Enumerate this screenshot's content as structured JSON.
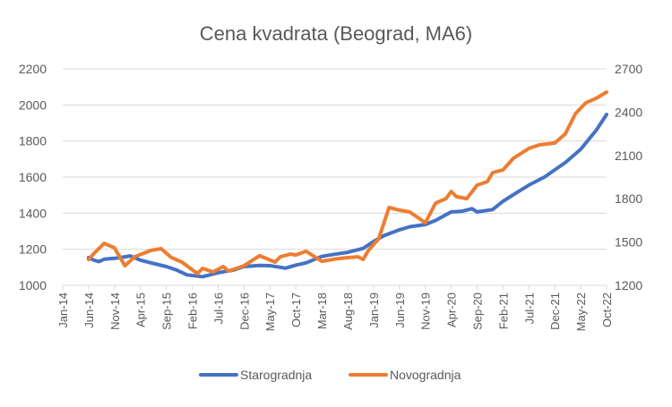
{
  "chart_data": {
    "type": "line",
    "title": "Cena kvadrata (Beograd, MA6)",
    "xlabel": "",
    "ylabel_left": "",
    "ylabel_right": "",
    "grid": true,
    "legend_position": "bottom",
    "x_ticks": [
      "Jan-14",
      "Jun-14",
      "Nov-14",
      "Apr-15",
      "Sep-15",
      "Feb-16",
      "Jul-16",
      "Dec-16",
      "May-17",
      "Oct-17",
      "Mar-18",
      "Aug-18",
      "Jan-19",
      "Jun-19",
      "Nov-19",
      "Apr-20",
      "Sep-20",
      "Feb-21",
      "Jul-21",
      "Dec-21",
      "May-22",
      "Oct-22"
    ],
    "xlim": [
      "2014-01",
      "2022-10"
    ],
    "y_left": {
      "ticks": [
        1000,
        1200,
        1400,
        1600,
        1800,
        2000,
        2200
      ],
      "ylim": [
        1000,
        2200
      ]
    },
    "y_right": {
      "ticks": [
        1200,
        1500,
        1800,
        2100,
        2400,
        2700
      ],
      "ylim": [
        1200,
        2700
      ]
    },
    "colors": {
      "Starogradnja": "#4472C4",
      "Novogradnja": "#ED7D31",
      "grid": "#D9D9D9",
      "text": "#595959"
    },
    "series": [
      {
        "name": "Starogradnja",
        "axis": "left",
        "points": [
          [
            "2014-06",
            1154
          ],
          [
            "2014-07",
            1140
          ],
          [
            "2014-08",
            1132
          ],
          [
            "2014-09",
            1145
          ],
          [
            "2014-11",
            1150
          ],
          [
            "2015-01",
            1158
          ],
          [
            "2015-02",
            1163
          ],
          [
            "2015-04",
            1140
          ],
          [
            "2015-06",
            1125
          ],
          [
            "2015-09",
            1104
          ],
          [
            "2015-11",
            1085
          ],
          [
            "2016-01",
            1058
          ],
          [
            "2016-04",
            1048
          ],
          [
            "2016-07",
            1070
          ],
          [
            "2016-10",
            1085
          ],
          [
            "2016-12",
            1104
          ],
          [
            "2017-03",
            1110
          ],
          [
            "2017-05",
            1109
          ],
          [
            "2017-07",
            1100
          ],
          [
            "2017-08",
            1095
          ],
          [
            "2017-10",
            1112
          ],
          [
            "2017-12",
            1125
          ],
          [
            "2018-03",
            1160
          ],
          [
            "2018-05",
            1170
          ],
          [
            "2018-08",
            1183
          ],
          [
            "2018-11",
            1205
          ],
          [
            "2019-01",
            1243
          ],
          [
            "2019-03",
            1275
          ],
          [
            "2019-06",
            1308
          ],
          [
            "2019-08",
            1325
          ],
          [
            "2019-11",
            1337
          ],
          [
            "2020-01",
            1360
          ],
          [
            "2020-04",
            1407
          ],
          [
            "2020-06",
            1410
          ],
          [
            "2020-08",
            1425
          ],
          [
            "2020-09",
            1407
          ],
          [
            "2020-12",
            1420
          ],
          [
            "2021-02",
            1466
          ],
          [
            "2021-05",
            1520
          ],
          [
            "2021-07",
            1556
          ],
          [
            "2021-10",
            1600
          ],
          [
            "2021-12",
            1640
          ],
          [
            "2022-02",
            1680
          ],
          [
            "2022-05",
            1754
          ],
          [
            "2022-08",
            1860
          ],
          [
            "2022-10",
            1947
          ]
        ]
      },
      {
        "name": "Novogradnja",
        "axis": "right",
        "points": [
          [
            "2014-06",
            1380
          ],
          [
            "2014-07",
            1420
          ],
          [
            "2014-09",
            1491
          ],
          [
            "2014-11",
            1460
          ],
          [
            "2015-01",
            1336
          ],
          [
            "2015-03",
            1400
          ],
          [
            "2015-06",
            1442
          ],
          [
            "2015-08",
            1454
          ],
          [
            "2015-10",
            1392
          ],
          [
            "2015-12",
            1361
          ],
          [
            "2016-03",
            1281
          ],
          [
            "2016-04",
            1318
          ],
          [
            "2016-06",
            1293
          ],
          [
            "2016-08",
            1330
          ],
          [
            "2016-09",
            1299
          ],
          [
            "2016-12",
            1336
          ],
          [
            "2017-03",
            1405
          ],
          [
            "2017-06",
            1361
          ],
          [
            "2017-07",
            1398
          ],
          [
            "2017-09",
            1417
          ],
          [
            "2017-10",
            1410
          ],
          [
            "2017-12",
            1436
          ],
          [
            "2018-03",
            1367
          ],
          [
            "2018-06",
            1385
          ],
          [
            "2018-08",
            1392
          ],
          [
            "2018-10",
            1398
          ],
          [
            "2018-11",
            1380
          ],
          [
            "2018-12",
            1442
          ],
          [
            "2019-02",
            1522
          ],
          [
            "2019-04",
            1739
          ],
          [
            "2019-06",
            1721
          ],
          [
            "2019-08",
            1708
          ],
          [
            "2019-11",
            1634
          ],
          [
            "2020-01",
            1770
          ],
          [
            "2020-03",
            1801
          ],
          [
            "2020-04",
            1851
          ],
          [
            "2020-05",
            1814
          ],
          [
            "2020-07",
            1801
          ],
          [
            "2020-09",
            1894
          ],
          [
            "2020-11",
            1919
          ],
          [
            "2020-12",
            1981
          ],
          [
            "2021-02",
            2000
          ],
          [
            "2021-04",
            2080
          ],
          [
            "2021-07",
            2149
          ],
          [
            "2021-09",
            2173
          ],
          [
            "2021-12",
            2186
          ],
          [
            "2022-02",
            2248
          ],
          [
            "2022-04",
            2390
          ],
          [
            "2022-06",
            2465
          ],
          [
            "2022-08",
            2496
          ],
          [
            "2022-10",
            2539
          ]
        ]
      }
    ]
  }
}
